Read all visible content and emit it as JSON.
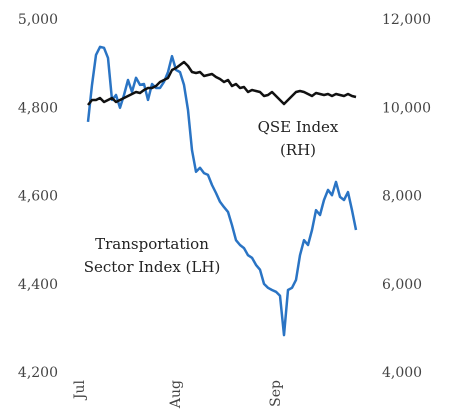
{
  "chart_data": {
    "type": "line",
    "categories": [
      "Jul",
      null,
      null,
      null,
      null,
      null,
      null,
      null,
      null,
      null,
      null,
      null,
      null,
      null,
      null,
      null,
      null,
      null,
      null,
      null,
      null,
      null,
      null,
      null,
      "Aug",
      null,
      null,
      null,
      null,
      null,
      null,
      null,
      null,
      null,
      null,
      null,
      null,
      null,
      null,
      null,
      null,
      null,
      null,
      null,
      null,
      null,
      null,
      null,
      null,
      "Sep",
      null,
      null,
      null,
      null,
      null,
      null,
      null,
      null,
      null,
      null,
      null,
      null,
      null,
      null,
      null,
      null,
      null,
      null
    ],
    "series": [
      {
        "name": "Transportation Sector Index (LH)",
        "color": "#2a74c4",
        "axis": "y",
        "values": [
          4769,
          4853,
          4921,
          4939,
          4937,
          4914,
          4819,
          4830,
          4801,
          4830,
          4864,
          4837,
          4869,
          4853,
          4855,
          4819,
          4855,
          4846,
          4846,
          4860,
          4882,
          4918,
          4887,
          4882,
          4853,
          4796,
          4705,
          4656,
          4665,
          4653,
          4649,
          4626,
          4608,
          4588,
          4576,
          4565,
          4535,
          4501,
          4490,
          4483,
          4467,
          4461,
          4445,
          4434,
          4402,
          4393,
          4388,
          4384,
          4375,
          4286,
          4388,
          4393,
          4411,
          4467,
          4501,
          4490,
          4524,
          4569,
          4558,
          4592,
          4615,
          4603,
          4633,
          4599,
          4592,
          4610,
          4569,
          4524
        ]
      },
      {
        "name": "QSE Index (RH)",
        "color": "#111111",
        "axis": "y2",
        "values": [
          10074,
          10187,
          10187,
          10233,
          10142,
          10187,
          10233,
          10142,
          10187,
          10233,
          10278,
          10323,
          10368,
          10346,
          10414,
          10459,
          10459,
          10504,
          10595,
          10640,
          10686,
          10867,
          10912,
          10980,
          11048,
          10958,
          10822,
          10799,
          10822,
          10731,
          10754,
          10776,
          10708,
          10663,
          10595,
          10640,
          10504,
          10550,
          10459,
          10482,
          10368,
          10414,
          10391,
          10368,
          10278,
          10300,
          10368,
          10278,
          10187,
          10097,
          10187,
          10278,
          10368,
          10391,
          10368,
          10323,
          10278,
          10346,
          10323,
          10300,
          10323,
          10278,
          10323,
          10300,
          10278,
          10323,
          10278,
          10255
        ]
      }
    ],
    "annotations": [
      {
        "lines": [
          "QSE Index",
          "(RH)"
        ]
      },
      {
        "lines": [
          "Transportation",
          "Sector Index (LH)"
        ]
      }
    ],
    "ylim": [
      4200,
      5000
    ],
    "yticks": [
      {
        "value": 4200,
        "label": "4,200"
      },
      {
        "value": 4400,
        "label": "4,400"
      },
      {
        "value": 4600,
        "label": "4,600"
      },
      {
        "value": 4800,
        "label": "4,800"
      },
      {
        "value": 5000,
        "label": "5,000"
      }
    ],
    "y2lim": [
      4000,
      12000
    ],
    "y2ticks": [
      {
        "value": 4000,
        "label": "4,000"
      },
      {
        "value": 6000,
        "label": "6,000"
      },
      {
        "value": 8000,
        "label": "8,000"
      },
      {
        "value": 10000,
        "label": "10,000"
      },
      {
        "value": 12000,
        "label": "12,000"
      }
    ],
    "grid": false
  }
}
